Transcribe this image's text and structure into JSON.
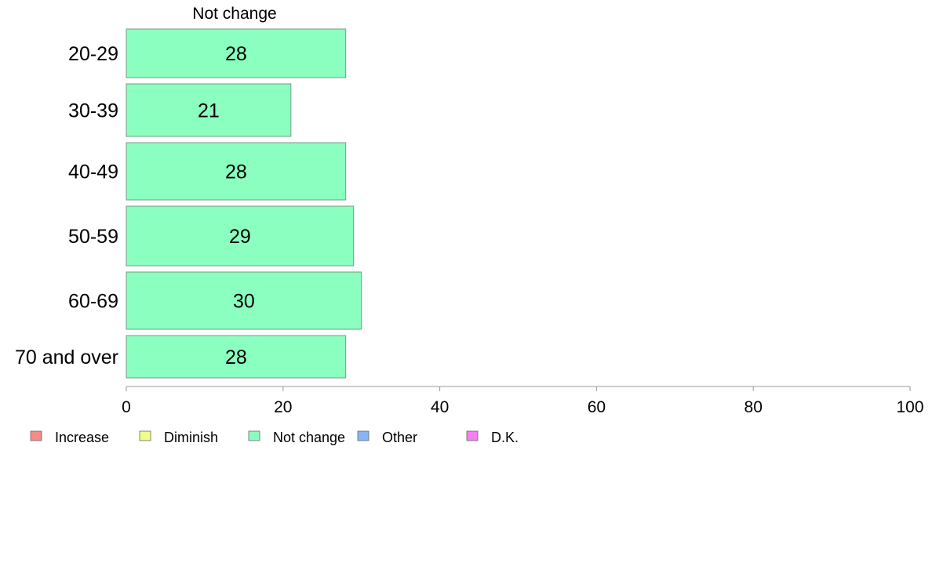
{
  "chart_data": {
    "type": "bar",
    "orientation": "horizontal",
    "panel_title": "Not change",
    "categories": [
      "20-29",
      "30-39",
      "40-49",
      "50-59",
      "60-69",
      "70 and over"
    ],
    "series": [
      {
        "name": "Not change",
        "values": [
          28,
          21,
          28,
          29,
          30,
          28
        ],
        "color": "#8affbf"
      }
    ],
    "xlim": [
      0,
      100
    ],
    "xticks": [
      0,
      20,
      40,
      60,
      80,
      100
    ],
    "grid": false,
    "legend": {
      "placement": "bottom",
      "items": [
        {
          "label": "Increase",
          "color": "#f78b87"
        },
        {
          "label": "Diminish",
          "color": "#f0ff87"
        },
        {
          "label": "Not change",
          "color": "#8affbf"
        },
        {
          "label": "Other",
          "color": "#87b3f7"
        },
        {
          "label": "D.K.",
          "color": "#f57ff5"
        }
      ]
    }
  }
}
